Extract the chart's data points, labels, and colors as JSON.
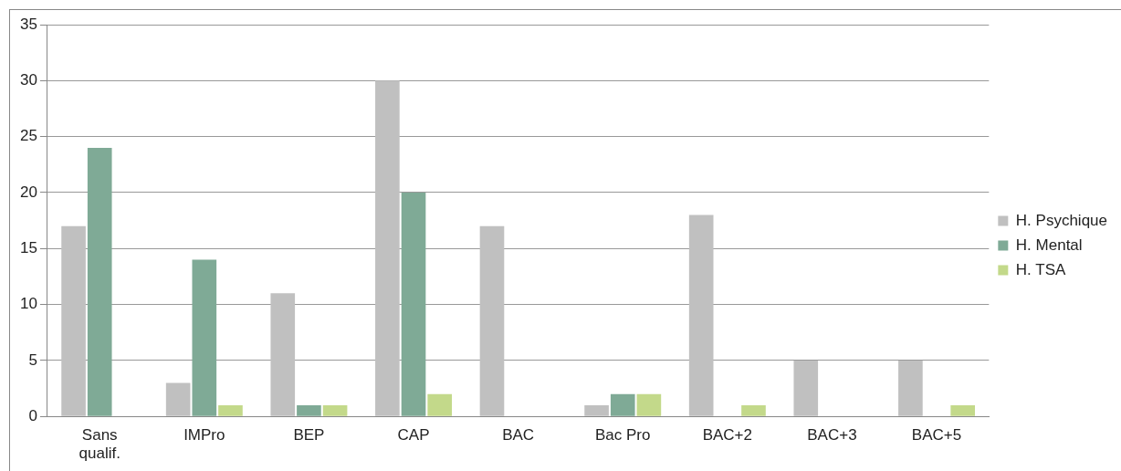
{
  "chart_data": {
    "type": "bar",
    "categories": [
      "Sans qualif.",
      "IMPro",
      "BEP",
      "CAP",
      "BAC",
      "Bac Pro",
      "BAC+2",
      "BAC+3",
      "BAC+5"
    ],
    "series": [
      {
        "name": "H. Psychique",
        "color": "#c0c0c0",
        "values": [
          17,
          3,
          11,
          30,
          17,
          1,
          18,
          5,
          5
        ]
      },
      {
        "name": "H. Mental",
        "color": "#7faa96",
        "values": [
          24,
          14,
          1,
          20,
          0,
          2,
          0,
          0,
          0
        ]
      },
      {
        "name": "H. TSA",
        "color": "#c3d98a",
        "values": [
          0,
          1,
          1,
          2,
          0,
          2,
          1,
          0,
          1
        ]
      }
    ],
    "ylim": [
      0,
      35
    ],
    "yticks": [
      0,
      5,
      10,
      15,
      20,
      25,
      30,
      35
    ],
    "grid": "y",
    "legend": "right"
  }
}
